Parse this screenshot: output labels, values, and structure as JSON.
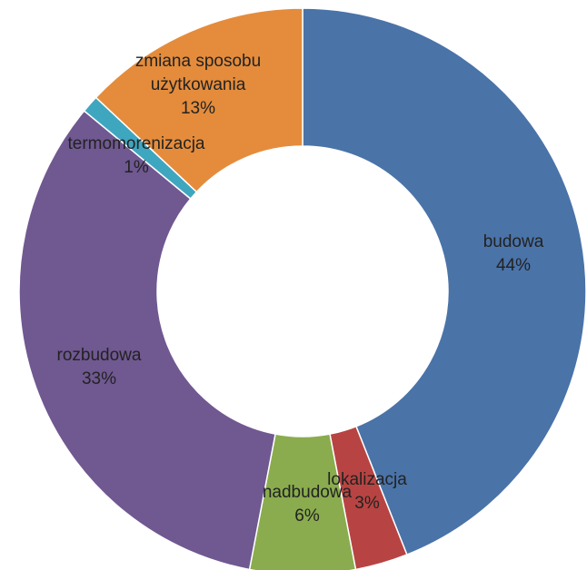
{
  "chart_data": {
    "type": "pie",
    "variant": "donut",
    "title": "",
    "slices": [
      {
        "name": "budowa",
        "value": 44,
        "label": "44%",
        "color": "#4a73a8",
        "name_lines": [
          "budowa"
        ]
      },
      {
        "name": "lokalizacja",
        "value": 3,
        "label": "3%",
        "color": "#b74442",
        "name_lines": [
          "lokalizacja"
        ]
      },
      {
        "name": "nadbudowa",
        "value": 6,
        "label": "6%",
        "color": "#8aac4e",
        "name_lines": [
          "nadbudowa"
        ]
      },
      {
        "name": "rozbudowa",
        "value": 33,
        "label": "33%",
        "color": "#705891",
        "name_lines": [
          "rozbudowa"
        ]
      },
      {
        "name": "termomorenizacja",
        "value": 1,
        "label": "1%",
        "color": "#3fa6c0",
        "name_lines": [
          "termomorenizacja"
        ]
      },
      {
        "name": "zmiana sposobu użytkowania",
        "value": 13,
        "label": "13%",
        "color": "#e48c3c",
        "name_lines": [
          "zmiana sposobu",
          "użytkowania"
        ]
      }
    ],
    "legend": "none",
    "start_angle_deg": 0,
    "direction": "clockwise"
  }
}
